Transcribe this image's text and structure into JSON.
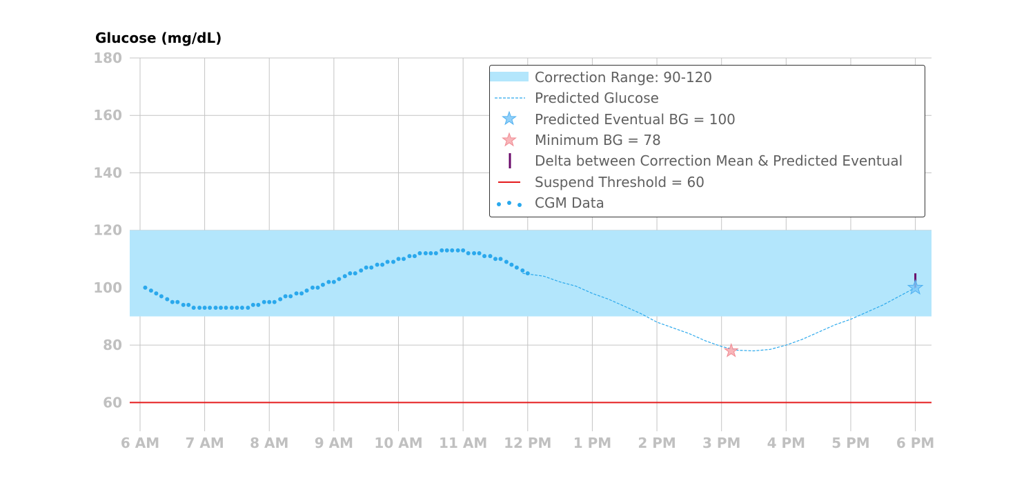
{
  "chart_data": {
    "type": "line",
    "title": "",
    "ylabel": "Glucose (mg/dL)",
    "xlabel": "",
    "xlim": [
      5.84,
      18.25
    ],
    "ylim": [
      50,
      180
    ],
    "x_ticks": [
      {
        "value": 6,
        "label": "6 AM"
      },
      {
        "value": 7,
        "label": "7 AM"
      },
      {
        "value": 8,
        "label": "8 AM"
      },
      {
        "value": 9,
        "label": "9 AM"
      },
      {
        "value": 10,
        "label": "10 AM"
      },
      {
        "value": 11,
        "label": "11 AM"
      },
      {
        "value": 12,
        "label": "12 PM"
      },
      {
        "value": 13,
        "label": "1 PM"
      },
      {
        "value": 14,
        "label": "2 PM"
      },
      {
        "value": 15,
        "label": "3 PM"
      },
      {
        "value": 16,
        "label": "4 PM"
      },
      {
        "value": 17,
        "label": "5 PM"
      },
      {
        "value": 18,
        "label": "6 PM"
      }
    ],
    "y_ticks": [
      60,
      80,
      100,
      120,
      140,
      160,
      180
    ],
    "grid": true,
    "legend_placement": "top-right",
    "correction_range": {
      "low": 90,
      "high": 120,
      "label": "Correction Range: 90-120",
      "color": "#b3e6fc"
    },
    "suspend_threshold": {
      "value": 60,
      "label": "Suspend Threshold = 60",
      "color": "#e41a1c"
    },
    "predicted_eventual": {
      "x": 18.0,
      "y": 100,
      "label": "Predicted Eventual BG = 100",
      "color": "#7ec8f8"
    },
    "minimum_bg": {
      "x": 15.15,
      "y": 78,
      "label": "Minimum BG = 78",
      "color": "#f7a8ad"
    },
    "delta": {
      "x": 18.0,
      "y_from": 100,
      "y_to": 105,
      "label": "Delta between Correction Mean & Predicted Eventual",
      "color": "#6a0a6a"
    },
    "predicted_glucose": {
      "label": "Predicted Glucose",
      "color": "#2aa8ec",
      "points": [
        [
          11.92,
          105
        ],
        [
          12.25,
          104
        ],
        [
          12.5,
          102
        ],
        [
          12.75,
          100.5
        ],
        [
          13.0,
          98
        ],
        [
          13.25,
          96
        ],
        [
          13.5,
          93.5
        ],
        [
          13.75,
          91
        ],
        [
          14.0,
          88
        ],
        [
          14.25,
          86
        ],
        [
          14.5,
          84
        ],
        [
          14.75,
          81.5
        ],
        [
          15.0,
          79.5
        ],
        [
          15.25,
          78.2
        ],
        [
          15.5,
          78
        ],
        [
          15.75,
          78.5
        ],
        [
          16.0,
          80
        ],
        [
          16.25,
          82
        ],
        [
          16.5,
          84.5
        ],
        [
          16.75,
          87
        ],
        [
          17.0,
          89
        ],
        [
          17.25,
          91.5
        ],
        [
          17.5,
          94
        ],
        [
          17.75,
          97
        ],
        [
          18.0,
          100
        ]
      ]
    },
    "cgm": {
      "label": "CGM Data",
      "color": "#2aa8ec",
      "points": [
        [
          6.08,
          100
        ],
        [
          6.17,
          99
        ],
        [
          6.25,
          98
        ],
        [
          6.33,
          97
        ],
        [
          6.42,
          96
        ],
        [
          6.5,
          95
        ],
        [
          6.58,
          95
        ],
        [
          6.67,
          94
        ],
        [
          6.75,
          94
        ],
        [
          6.83,
          93
        ],
        [
          6.92,
          93
        ],
        [
          7.0,
          93
        ],
        [
          7.08,
          93
        ],
        [
          7.17,
          93
        ],
        [
          7.25,
          93
        ],
        [
          7.33,
          93
        ],
        [
          7.42,
          93
        ],
        [
          7.5,
          93
        ],
        [
          7.58,
          93
        ],
        [
          7.67,
          93
        ],
        [
          7.75,
          94
        ],
        [
          7.83,
          94
        ],
        [
          7.92,
          95
        ],
        [
          8.0,
          95
        ],
        [
          8.08,
          95
        ],
        [
          8.17,
          96
        ],
        [
          8.25,
          97
        ],
        [
          8.33,
          97
        ],
        [
          8.42,
          98
        ],
        [
          8.5,
          98
        ],
        [
          8.58,
          99
        ],
        [
          8.67,
          100
        ],
        [
          8.75,
          100
        ],
        [
          8.83,
          101
        ],
        [
          8.92,
          102
        ],
        [
          9.0,
          102
        ],
        [
          9.08,
          103
        ],
        [
          9.17,
          104
        ],
        [
          9.25,
          105
        ],
        [
          9.33,
          105
        ],
        [
          9.42,
          106
        ],
        [
          9.5,
          107
        ],
        [
          9.58,
          107
        ],
        [
          9.67,
          108
        ],
        [
          9.75,
          108
        ],
        [
          9.83,
          109
        ],
        [
          9.92,
          109
        ],
        [
          10.0,
          110
        ],
        [
          10.08,
          110
        ],
        [
          10.17,
          111
        ],
        [
          10.25,
          111
        ],
        [
          10.33,
          112
        ],
        [
          10.42,
          112
        ],
        [
          10.5,
          112
        ],
        [
          10.58,
          112
        ],
        [
          10.67,
          113
        ],
        [
          10.75,
          113
        ],
        [
          10.83,
          113
        ],
        [
          10.92,
          113
        ],
        [
          11.0,
          113
        ],
        [
          11.08,
          112
        ],
        [
          11.17,
          112
        ],
        [
          11.25,
          112
        ],
        [
          11.33,
          111
        ],
        [
          11.42,
          111
        ],
        [
          11.5,
          110
        ],
        [
          11.58,
          110
        ],
        [
          11.67,
          109
        ],
        [
          11.75,
          108
        ],
        [
          11.83,
          107
        ],
        [
          11.92,
          106
        ],
        [
          12.0,
          105
        ]
      ]
    }
  }
}
